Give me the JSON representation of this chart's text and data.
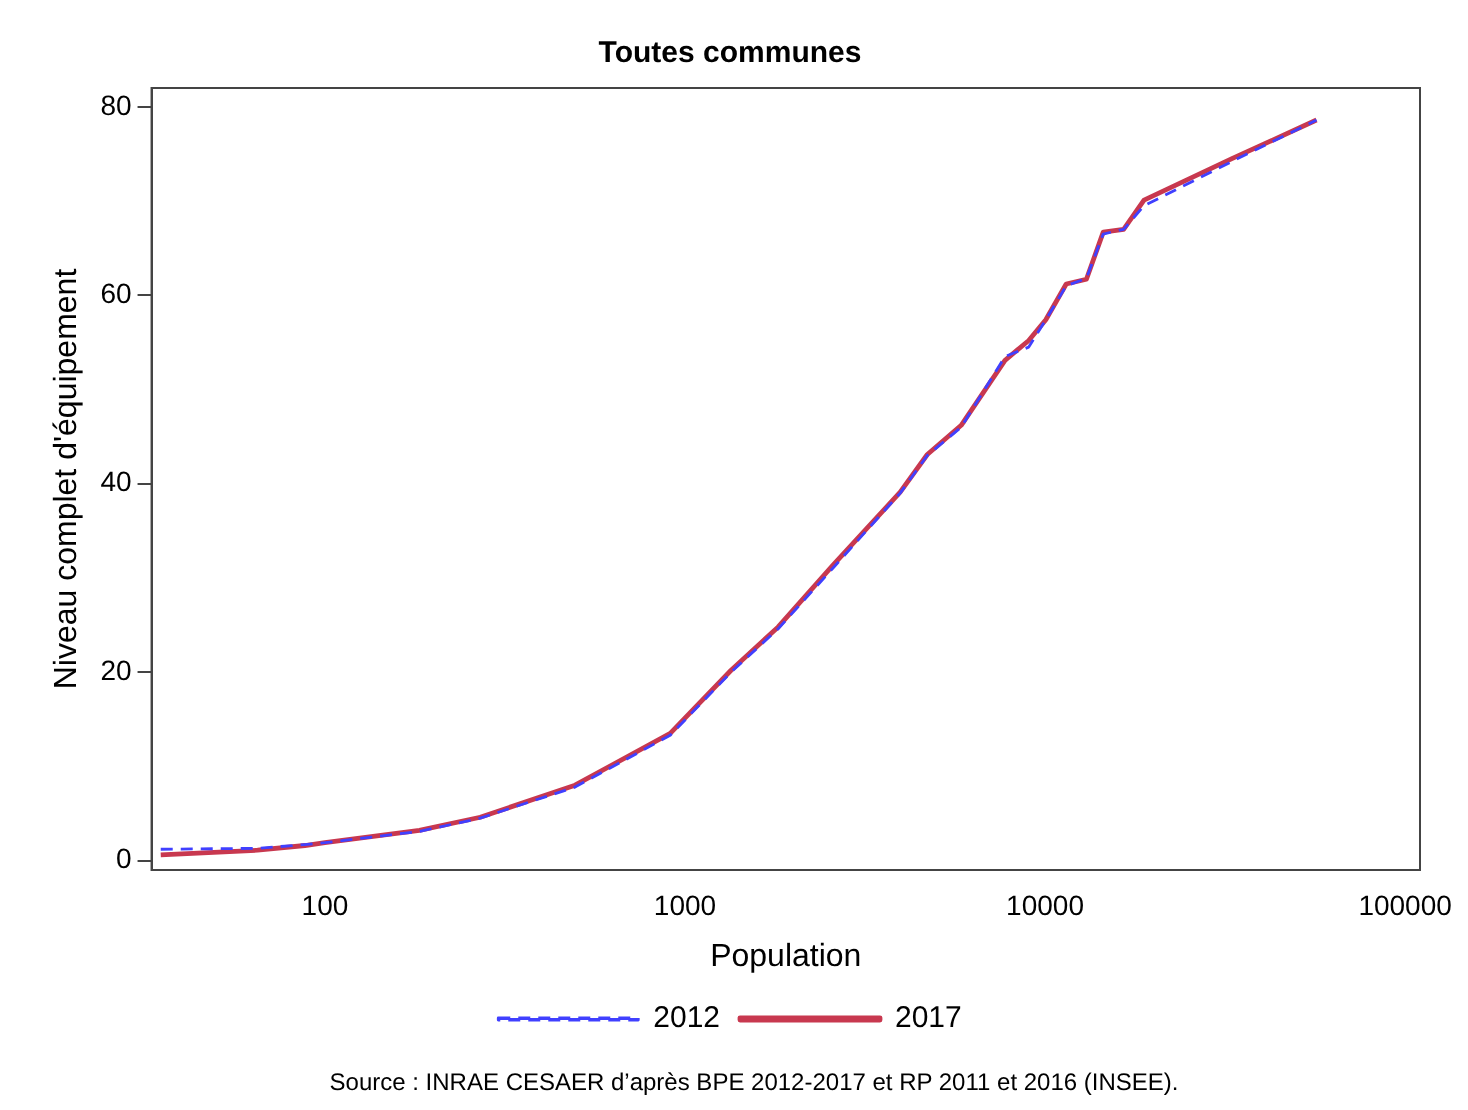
{
  "chart_data": {
    "type": "line",
    "title": "Toutes communes",
    "xlabel": "Population",
    "ylabel": "Niveau complet d'équipement",
    "annotations": [
      "Source : INRAE CESAER d’après BPE 2012-2017 et RP 2011 et 2016 (INSEE)."
    ],
    "log": "x",
    "xlim": [
      33,
      110000
    ],
    "xticks": [
      100,
      1000,
      10000,
      100000
    ],
    "ylim": [
      -1,
      82
    ],
    "yticks": [
      0,
      20,
      40,
      60,
      80
    ],
    "grid": false,
    "legend": "bottom",
    "marker": "none",
    "x": [
      35,
      65,
      88,
      100,
      183,
      270,
      495,
      910,
      1343,
      1815,
      2570,
      3190,
      3960,
      4710,
      5850,
      7740,
      9010,
      10050,
      11450,
      13030,
      14510,
      16530,
      18830,
      33040,
      56750
    ],
    "series": [
      {
        "name": "2012",
        "color": "#4040ff",
        "line_style": "dashed",
        "values": [
          1.2,
          1.3,
          1.7,
          1.9,
          3.1,
          4.5,
          7.8,
          13.3,
          20.0,
          24.6,
          31.0,
          35.0,
          39.0,
          43.0,
          46.0,
          53.5,
          54.5,
          57.4,
          61.0,
          61.8,
          66.5,
          67.0,
          69.5,
          74.2,
          78.6
        ]
      },
      {
        "name": "2017",
        "color": "#c8384f",
        "line_style": "solid",
        "values": [
          0.6,
          1.1,
          1.6,
          1.9,
          3.2,
          4.6,
          8.0,
          13.5,
          20.2,
          24.8,
          31.3,
          35.2,
          39.1,
          43.1,
          46.2,
          53.1,
          55.2,
          57.4,
          61.2,
          61.7,
          66.7,
          67.0,
          70.1,
          74.5,
          78.6
        ]
      }
    ]
  }
}
